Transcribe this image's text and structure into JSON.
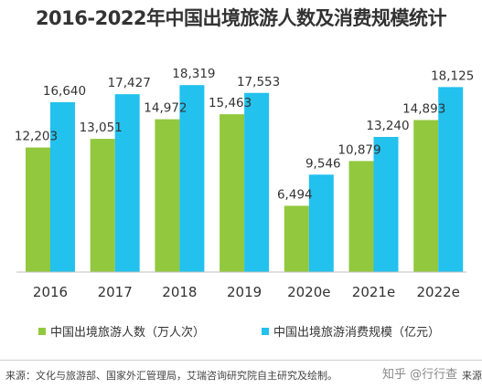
{
  "title": "2016-2022年中国出境旅游人数及消费规模统计",
  "chart_data": {
    "type": "bar",
    "categories": [
      "2016",
      "2017",
      "2018",
      "2019",
      "2020e",
      "2021e",
      "2022e"
    ],
    "series": [
      {
        "name": "中国出境旅游人数（万人次）",
        "color": "#92c83e",
        "values": [
          12203,
          13051,
          14972,
          15463,
          6494,
          10879,
          14893
        ],
        "labels": [
          "12,203",
          "13,051",
          "14,972",
          "15,463",
          "6,494",
          "10,879",
          "14,893"
        ]
      },
      {
        "name": "中国出境旅游消费规模（亿元）",
        "color": "#22c1ee",
        "values": [
          16640,
          17427,
          18319,
          17553,
          9546,
          13240,
          18125
        ],
        "labels": [
          "16,640",
          "17,427",
          "18,319",
          "17,553",
          "9,546",
          "13,240",
          "18,125"
        ]
      }
    ],
    "ylim": [
      0,
      19500
    ],
    "grid": false,
    "legend_position": "bottom"
  },
  "source_text": "来源：文化与旅游部、国家外汇管理局，艾瑞咨询研究院自主研究及绘制。",
  "watermark": "知乎 @行行查",
  "source_right": "来源："
}
